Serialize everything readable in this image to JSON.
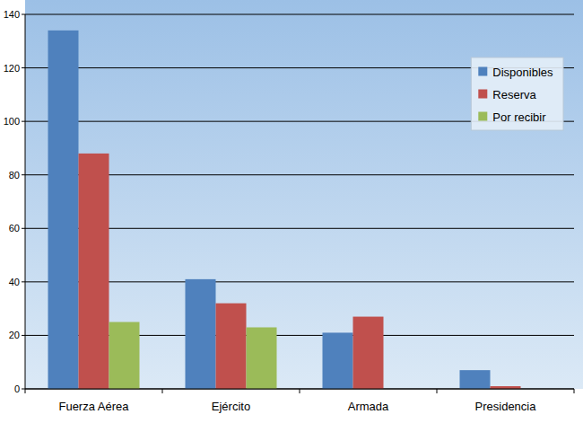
{
  "chart_data": {
    "type": "bar",
    "categories": [
      "Fuerza Aérea",
      "Ejército",
      "Armada",
      "Presidencia"
    ],
    "series": [
      {
        "name": "Disponibles",
        "color": "#4f81bd",
        "values": [
          134,
          41,
          21,
          7
        ]
      },
      {
        "name": "Reserva",
        "color": "#c0504d",
        "values": [
          88,
          32,
          27,
          1
        ]
      },
      {
        "name": "Por recibir",
        "color": "#9bbb59",
        "values": [
          25,
          23,
          null,
          null
        ]
      }
    ],
    "ylim": [
      0,
      140
    ],
    "yticks": [
      0,
      20,
      40,
      60,
      80,
      100,
      120,
      140
    ],
    "grid": true,
    "legend": "top right"
  }
}
